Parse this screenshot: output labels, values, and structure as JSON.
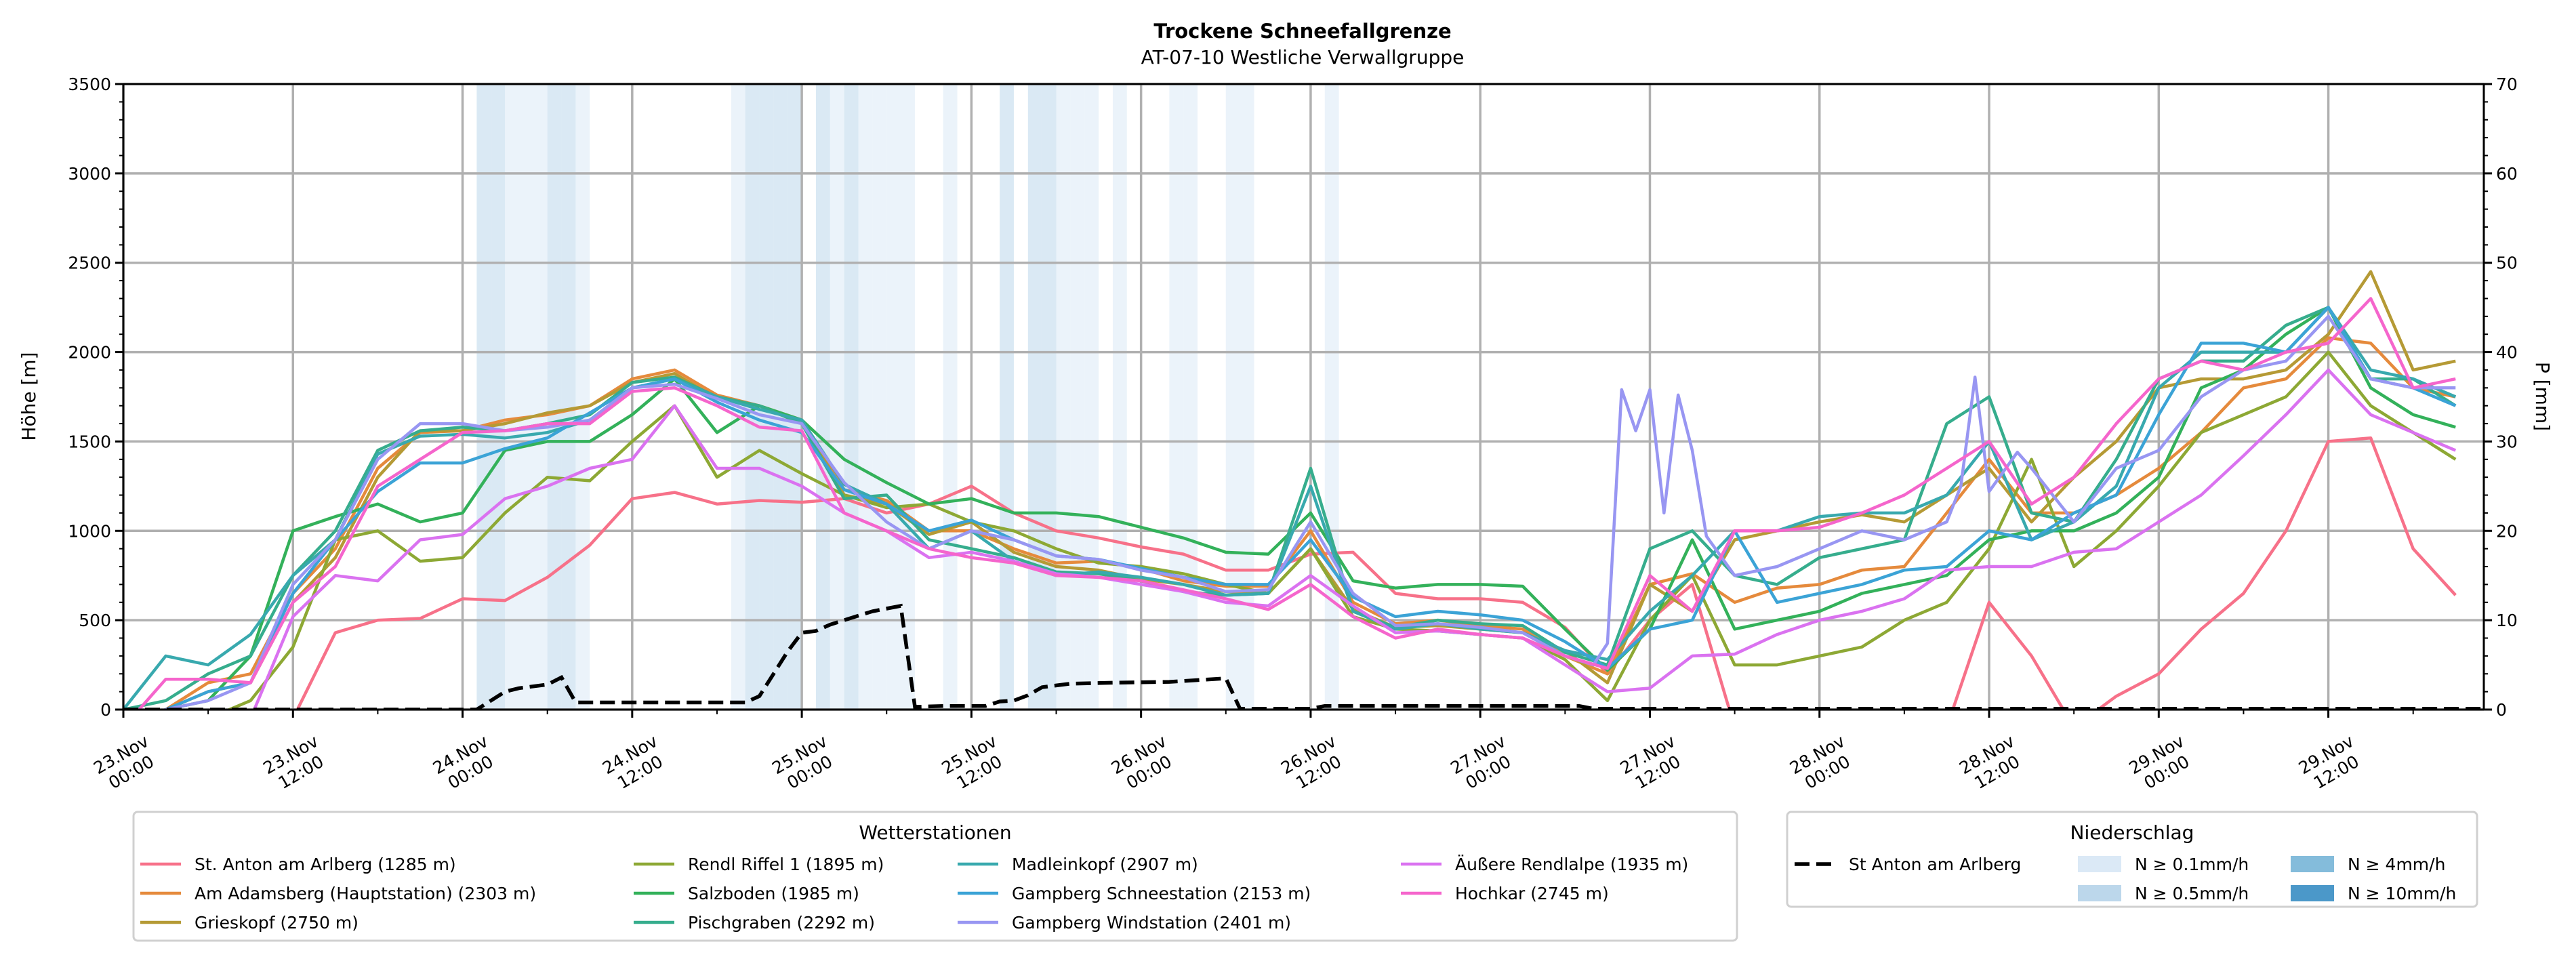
{
  "chart_data": {
    "type": "line",
    "title": "Trockene Schneefallgrenze",
    "subtitle": "AT-07-10 Westliche Verwallgruppe",
    "ylabel": "Höhe [m]",
    "y2label": "P [mm]",
    "x_unit": "hours since 23.Nov 00:00",
    "xlim": [
      0,
      167
    ],
    "ylim": [
      0,
      3500
    ],
    "y2lim": [
      0,
      70
    ],
    "grid": true,
    "y_ticks": [
      0,
      500,
      1000,
      1500,
      2000,
      2500,
      3000,
      3500
    ],
    "y2_ticks": [
      0,
      10,
      20,
      30,
      40,
      50,
      60,
      70
    ],
    "x_ticks": [
      {
        "hour": 0,
        "date": "23.Nov",
        "time": "00:00"
      },
      {
        "hour": 12,
        "date": "23.Nov",
        "time": "12:00"
      },
      {
        "hour": 24,
        "date": "24.Nov",
        "time": "00:00"
      },
      {
        "hour": 36,
        "date": "24.Nov",
        "time": "12:00"
      },
      {
        "hour": 48,
        "date": "25.Nov",
        "time": "00:00"
      },
      {
        "hour": 60,
        "date": "25.Nov",
        "time": "12:00"
      },
      {
        "hour": 72,
        "date": "26.Nov",
        "time": "00:00"
      },
      {
        "hour": 84,
        "date": "26.Nov",
        "time": "12:00"
      },
      {
        "hour": 96,
        "date": "27.Nov",
        "time": "00:00"
      },
      {
        "hour": 108,
        "date": "27.Nov",
        "time": "12:00"
      },
      {
        "hour": 120,
        "date": "28.Nov",
        "time": "00:00"
      },
      {
        "hour": 132,
        "date": "28.Nov",
        "time": "12:00"
      },
      {
        "hour": 144,
        "date": "29.Nov",
        "time": "00:00"
      },
      {
        "hour": 156,
        "date": "29.Nov",
        "time": "12:00"
      }
    ],
    "x_hours": [
      0,
      3,
      6,
      9,
      12,
      15,
      18,
      21,
      24,
      27,
      30,
      33,
      36,
      39,
      42,
      45,
      48,
      51,
      54,
      57,
      60,
      63,
      66,
      69,
      72,
      75,
      78,
      81,
      84,
      87,
      90,
      93,
      96,
      99,
      102,
      105,
      108,
      111,
      114,
      117,
      120,
      123,
      126,
      129,
      132,
      135,
      138,
      141,
      144,
      147,
      150,
      153,
      156,
      159,
      162,
      165
    ],
    "series": [
      {
        "name": "St. Anton am Arlberg (1285 m)",
        "color": "#f77189",
        "values": [
          null,
          null,
          null,
          null,
          -50,
          430,
          500,
          510,
          620,
          610,
          740,
          920,
          1180,
          1215,
          1150,
          1170,
          1160,
          1180,
          1100,
          1150,
          1250,
          1100,
          1000,
          960,
          910,
          870,
          780,
          780,
          870,
          880,
          650,
          620,
          620,
          600,
          460,
          200,
          500,
          700,
          -100,
          null,
          null,
          null,
          null,
          -100,
          600,
          300,
          -100,
          75,
          200,
          450,
          650,
          1000,
          1500,
          1520,
          900,
          640
        ]
      },
      {
        "name": "Am Adamsberg (Hauptstation) (2303 m)",
        "color": "#e58a3c",
        "values": [
          -100,
          0,
          150,
          200,
          650,
          900,
          1350,
          1550,
          1560,
          1620,
          1650,
          1700,
          1850,
          1900,
          1760,
          1700,
          1600,
          1230,
          1170,
          1000,
          1000,
          900,
          820,
          830,
          790,
          720,
          690,
          690,
          1000,
          600,
          480,
          500,
          470,
          450,
          300,
          200,
          700,
          760,
          600,
          680,
          700,
          780,
          800,
          1100,
          1400,
          1100,
          1100,
          1200,
          1350,
          1550,
          1800,
          1850,
          2080,
          2050,
          1800,
          1750
        ]
      },
      {
        "name": "Grieskopf (2750 m)",
        "color": "#b59a35",
        "values": [
          -100,
          0,
          100,
          150,
          600,
          850,
          1300,
          1560,
          1560,
          1600,
          1660,
          1700,
          1830,
          1880,
          1740,
          1700,
          1620,
          1200,
          1150,
          980,
          1050,
          880,
          800,
          780,
          730,
          700,
          660,
          650,
          900,
          560,
          460,
          470,
          450,
          430,
          330,
          150,
          700,
          550,
          950,
          1000,
          1050,
          1090,
          1050,
          1200,
          1350,
          1050,
          1300,
          1500,
          1800,
          1850,
          1850,
          1900,
          2100,
          2450,
          1900,
          1950
        ]
      },
      {
        "name": "Rendl Riffel 1 (1895 m)",
        "color": "#8da834",
        "values": [
          null,
          -100,
          -50,
          50,
          350,
          950,
          1000,
          830,
          850,
          1100,
          1300,
          1280,
          1500,
          1700,
          1300,
          1450,
          1320,
          1200,
          1130,
          1150,
          1050,
          1000,
          900,
          820,
          800,
          760,
          700,
          650,
          900,
          520,
          450,
          440,
          420,
          400,
          280,
          50,
          500,
          750,
          250,
          250,
          300,
          350,
          500,
          600,
          900,
          1400,
          800,
          1000,
          1250,
          1550,
          1650,
          1750,
          2000,
          1700,
          1550,
          1400
        ]
      },
      {
        "name": "Salzboden (1985 m)",
        "color": "#33b15a",
        "values": [
          -100,
          0,
          50,
          300,
          1000,
          1080,
          1150,
          1050,
          1100,
          1450,
          1500,
          1500,
          1650,
          1850,
          1550,
          1700,
          1620,
          1400,
          1270,
          1150,
          1180,
          1100,
          1100,
          1080,
          1020,
          960,
          880,
          870,
          1100,
          720,
          680,
          700,
          700,
          690,
          450,
          220,
          450,
          950,
          450,
          500,
          550,
          650,
          700,
          750,
          950,
          1000,
          1000,
          1100,
          1300,
          1800,
          1900,
          2100,
          2250,
          1800,
          1650,
          1580
        ]
      },
      {
        "name": "Pischgraben (2292 m)",
        "color": "#36ad8d",
        "values": [
          0,
          50,
          200,
          300,
          750,
          1000,
          1450,
          1560,
          1580,
          1560,
          1600,
          1650,
          1830,
          1860,
          1750,
          1700,
          1600,
          1180,
          1200,
          950,
          900,
          850,
          770,
          760,
          720,
          660,
          640,
          650,
          1350,
          550,
          460,
          500,
          480,
          470,
          320,
          250,
          900,
          1000,
          750,
          700,
          850,
          900,
          950,
          1600,
          1750,
          1100,
          1050,
          1400,
          1850,
          1950,
          1950,
          2150,
          2250,
          1850,
          1850,
          1700
        ]
      },
      {
        "name": "Madleinkopf (2907 m)",
        "color": "#38a9ae",
        "values": [
          0,
          300,
          250,
          420,
          750,
          950,
          1430,
          1530,
          1540,
          1520,
          1550,
          1620,
          1800,
          1850,
          1750,
          1680,
          1620,
          1260,
          1150,
          900,
          1000,
          830,
          750,
          770,
          740,
          700,
          640,
          650,
          1250,
          550,
          450,
          480,
          450,
          430,
          330,
          280,
          550,
          750,
          1000,
          1000,
          1080,
          1100,
          1100,
          1200,
          1500,
          950,
          1050,
          1250,
          1800,
          2000,
          2000,
          2000,
          2250,
          1900,
          1850,
          1750
        ]
      },
      {
        "name": "Gampberg Schneestation (2153 m)",
        "color": "#3ba3d6",
        "values": [
          -100,
          0,
          100,
          150,
          650,
          950,
          1220,
          1380,
          1380,
          1460,
          1520,
          1660,
          1800,
          1850,
          1720,
          1620,
          1550,
          1230,
          1150,
          1000,
          1060,
          950,
          860,
          840,
          790,
          740,
          700,
          700,
          950,
          630,
          520,
          550,
          530,
          500,
          380,
          230,
          450,
          500,
          1000,
          600,
          650,
          700,
          780,
          800,
          1000,
          950,
          1100,
          1200,
          1650,
          2050,
          2050,
          2000,
          2250,
          1850,
          1800,
          1700
        ]
      },
      {
        "name": "Gampberg Windstation (2401 m)",
        "color": "#9896f2",
        "x": [
          0,
          3,
          6,
          9,
          12,
          15,
          18,
          21,
          24,
          27,
          30,
          33,
          36,
          39,
          42,
          45,
          48,
          51,
          54,
          57,
          60,
          63,
          66,
          69,
          72,
          75,
          78,
          81,
          84,
          87,
          90,
          93,
          96,
          99,
          102,
          104,
          105,
          106,
          107,
          108,
          109,
          110,
          111,
          112,
          114,
          117,
          120,
          123,
          126,
          129,
          130,
          131,
          132,
          134,
          135,
          138,
          141,
          144,
          147,
          150,
          153,
          156,
          159,
          162,
          165
        ],
        "values": [
          -100,
          0,
          50,
          150,
          700,
          950,
          1400,
          1600,
          1600,
          1560,
          1580,
          1620,
          1800,
          1820,
          1740,
          1650,
          1600,
          1270,
          1050,
          900,
          1000,
          950,
          860,
          840,
          780,
          740,
          660,
          670,
          1050,
          650,
          470,
          480,
          460,
          430,
          300,
          250,
          370,
          1790,
          1560,
          1790,
          1100,
          1760,
          1450,
          970,
          750,
          800,
          900,
          1000,
          950,
          1050,
          1250,
          1860,
          1220,
          1440,
          1350,
          1050,
          1350,
          1450,
          1750,
          1900,
          1950,
          2200,
          1850,
          1800,
          1800
        ]
      },
      {
        "name": "Äußere Rendlalpe (1935 m)",
        "color": "#da72f0",
        "values": [
          null,
          null,
          -100,
          -50,
          520,
          750,
          720,
          950,
          980,
          1180,
          1250,
          1350,
          1400,
          1700,
          1350,
          1350,
          1250,
          1100,
          1000,
          850,
          880,
          830,
          760,
          740,
          700,
          660,
          600,
          580,
          750,
          580,
          430,
          440,
          420,
          400,
          250,
          100,
          120,
          300,
          310,
          420,
          500,
          550,
          620,
          780,
          800,
          800,
          880,
          900,
          1050,
          1200,
          1420,
          1650,
          1900,
          1650,
          1550,
          1450
        ]
      },
      {
        "name": "Hochkar (2745 m)",
        "color": "#f565cc",
        "values": [
          -100,
          170,
          170,
          150,
          600,
          800,
          1250,
          1400,
          1550,
          1560,
          1600,
          1600,
          1780,
          1800,
          1700,
          1580,
          1560,
          1100,
          1000,
          900,
          850,
          820,
          750,
          740,
          720,
          670,
          620,
          560,
          700,
          520,
          400,
          450,
          420,
          400,
          300,
          230,
          750,
          550,
          1000,
          1000,
          1020,
          1100,
          1200,
          1350,
          1500,
          1150,
          1300,
          1600,
          1850,
          1950,
          1900,
          2000,
          2050,
          2300,
          1800,
          1850
        ]
      }
    ],
    "precip_series": {
      "name": "St Anton am Arlberg",
      "color": "#000000",
      "unit": "mm",
      "points": [
        [
          0,
          0
        ],
        [
          25,
          0
        ],
        [
          26,
          1
        ],
        [
          27,
          2
        ],
        [
          28,
          2.4
        ],
        [
          30,
          2.8
        ],
        [
          31,
          3.6
        ],
        [
          32,
          0.8
        ],
        [
          44,
          0.8
        ],
        [
          45,
          1.5
        ],
        [
          46,
          4
        ],
        [
          47,
          6.5
        ],
        [
          48,
          8.6
        ],
        [
          49,
          8.8
        ],
        [
          50,
          9.5
        ],
        [
          52,
          10.5
        ],
        [
          53,
          11
        ],
        [
          55,
          11.6
        ],
        [
          56,
          0.3
        ],
        [
          58,
          0.4
        ],
        [
          61,
          0.4
        ],
        [
          62,
          0.9
        ],
        [
          63,
          1.0
        ],
        [
          64,
          1.6
        ],
        [
          65,
          2.5
        ],
        [
          67,
          2.9
        ],
        [
          70,
          3.0
        ],
        [
          74,
          3.1
        ],
        [
          77,
          3.4
        ],
        [
          78,
          3.5
        ],
        [
          79,
          0.1
        ],
        [
          84,
          0.1
        ],
        [
          85,
          0.4
        ],
        [
          103,
          0.4
        ],
        [
          104,
          0.1
        ],
        [
          167,
          0.1
        ]
      ]
    },
    "precip_bands": {
      "N ≥ 0.1mm/h": [
        27,
        28,
        29,
        32,
        43,
        50,
        52,
        53,
        54,
        55,
        58,
        66,
        67,
        68,
        70,
        74,
        75,
        78,
        79,
        85
      ],
      "N ≥ 0.5mm/h": [
        25,
        26,
        30,
        31,
        44,
        45,
        46,
        47,
        49,
        51,
        62,
        64,
        65
      ]
    },
    "legend_stations": {
      "title": "Wetterstationen",
      "columns": [
        [
          "St. Anton am Arlberg (1285 m)",
          "Am Adamsberg (Hauptstation) (2303 m)",
          "Grieskopf (2750 m)"
        ],
        [
          "Rendl Riffel 1 (1895 m)",
          "Salzboden (1985 m)",
          "Pischgraben (2292 m)"
        ],
        [
          "Madleinkopf (2907 m)",
          "Gampberg Schneestation (2153 m)",
          "Gampberg Windstation (2401 m)"
        ],
        [
          "Äußere Rendlalpe (1935 m)",
          "Hochkar (2745 m)"
        ]
      ]
    },
    "legend_precip": {
      "title": "Niederschlag",
      "line_label": "St Anton am Arlberg",
      "levels": [
        {
          "label": "N ≥ 0.1mm/h",
          "color": "#dbe9f6"
        },
        {
          "label": "N ≥ 0.5mm/h",
          "color": "#bcd7eb"
        },
        {
          "label": "N ≥ 4mm/h",
          "color": "#84bcdb"
        },
        {
          "label": "N ≥ 10mm/h",
          "color": "#4b98c9"
        }
      ]
    }
  }
}
